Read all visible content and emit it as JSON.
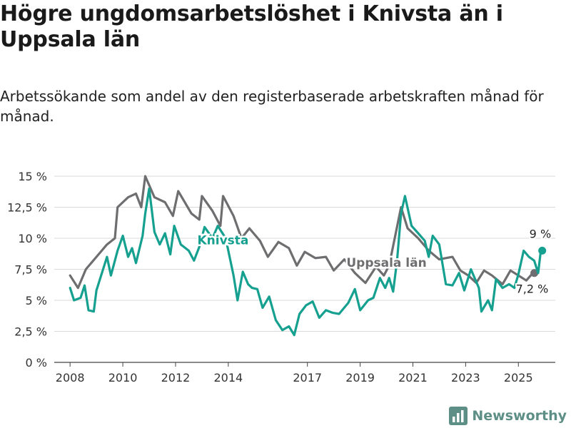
{
  "title": "Högre ungdomsarbetslöshet i Knivsta än i Uppsala län",
  "subtitle": "Arbetssökande som andel av den registerbaserade arbetskraften månad för månad.",
  "brand": {
    "name": "Newsworthy"
  },
  "chart_data": {
    "type": "line",
    "ylim": [
      0,
      15
    ],
    "xlim": [
      2007.4,
      2026.4
    ],
    "grid": true,
    "y_ticks": [
      0,
      2.5,
      5,
      7.5,
      10,
      12.5,
      15
    ],
    "y_tick_labels": [
      "0 %",
      "2,5 %",
      "5 %",
      "7,5 %",
      "10 %",
      "12,5 %",
      "15 %"
    ],
    "x_ticks": [
      2008,
      2010,
      2012,
      2014,
      2017,
      2019,
      2021,
      2023,
      2025
    ],
    "x_tick_labels": [
      "2008",
      "2010",
      "2012",
      "2014",
      "2017",
      "2019",
      "2021",
      "2023",
      "2025"
    ],
    "series": [
      {
        "name": "Uppsala län",
        "color": "#6e6e70",
        "end_label": "7,2 %",
        "points": [
          [
            2008.0,
            7.0
          ],
          [
            2008.3,
            6.0
          ],
          [
            2008.6,
            7.5
          ],
          [
            2009.0,
            8.5
          ],
          [
            2009.4,
            9.5
          ],
          [
            2009.7,
            10.0
          ],
          [
            2009.8,
            12.5
          ],
          [
            2010.2,
            13.3
          ],
          [
            2010.5,
            13.6
          ],
          [
            2010.7,
            12.5
          ],
          [
            2010.85,
            15.0
          ],
          [
            2011.2,
            13.3
          ],
          [
            2011.6,
            12.9
          ],
          [
            2011.9,
            11.8
          ],
          [
            2012.1,
            13.8
          ],
          [
            2012.6,
            12.0
          ],
          [
            2012.9,
            11.5
          ],
          [
            2013.0,
            13.4
          ],
          [
            2013.4,
            12.2
          ],
          [
            2013.7,
            11.0
          ],
          [
            2013.8,
            13.4
          ],
          [
            2014.2,
            11.8
          ],
          [
            2014.5,
            10.0
          ],
          [
            2014.8,
            10.8
          ],
          [
            2015.2,
            9.8
          ],
          [
            2015.5,
            8.5
          ],
          [
            2015.9,
            9.7
          ],
          [
            2016.3,
            9.2
          ],
          [
            2016.6,
            7.8
          ],
          [
            2016.9,
            8.9
          ],
          [
            2017.3,
            8.4
          ],
          [
            2017.7,
            8.5
          ],
          [
            2018.0,
            7.4
          ],
          [
            2018.4,
            8.3
          ],
          [
            2018.8,
            7.2
          ],
          [
            2019.2,
            6.4
          ],
          [
            2019.6,
            7.7
          ],
          [
            2019.9,
            7.0
          ],
          [
            2020.1,
            7.8
          ],
          [
            2020.55,
            12.5
          ],
          [
            2020.8,
            10.8
          ],
          [
            2021.2,
            10.0
          ],
          [
            2021.6,
            9.0
          ],
          [
            2022.0,
            8.3
          ],
          [
            2022.5,
            8.5
          ],
          [
            2022.8,
            7.4
          ],
          [
            2023.1,
            7.0
          ],
          [
            2023.4,
            6.4
          ],
          [
            2023.7,
            7.4
          ],
          [
            2024.0,
            7.0
          ],
          [
            2024.4,
            6.3
          ],
          [
            2024.7,
            7.4
          ],
          [
            2025.0,
            7.0
          ],
          [
            2025.3,
            6.6
          ],
          [
            2025.55,
            7.2
          ]
        ]
      },
      {
        "name": "Knivsta",
        "color": "#16a090",
        "end_label": "9 %",
        "points": [
          [
            2008.0,
            6.0
          ],
          [
            2008.15,
            5.0
          ],
          [
            2008.4,
            5.2
          ],
          [
            2008.55,
            6.2
          ],
          [
            2008.7,
            4.2
          ],
          [
            2008.9,
            4.1
          ],
          [
            2009.0,
            5.8
          ],
          [
            2009.4,
            8.5
          ],
          [
            2009.55,
            7.0
          ],
          [
            2009.8,
            9.0
          ],
          [
            2010.0,
            10.2
          ],
          [
            2010.2,
            8.5
          ],
          [
            2010.35,
            9.2
          ],
          [
            2010.5,
            8.0
          ],
          [
            2010.75,
            10.2
          ],
          [
            2010.85,
            12.0
          ],
          [
            2011.0,
            14.0
          ],
          [
            2011.2,
            10.5
          ],
          [
            2011.4,
            9.5
          ],
          [
            2011.6,
            10.4
          ],
          [
            2011.8,
            8.7
          ],
          [
            2011.95,
            11.0
          ],
          [
            2012.2,
            9.5
          ],
          [
            2012.5,
            9.0
          ],
          [
            2012.7,
            8.2
          ],
          [
            2012.9,
            9.3
          ],
          [
            2013.1,
            10.9
          ],
          [
            2013.4,
            10.0
          ],
          [
            2013.6,
            11.0
          ],
          [
            2013.9,
            10.0
          ],
          [
            2014.2,
            7.0
          ],
          [
            2014.35,
            5.0
          ],
          [
            2014.55,
            7.3
          ],
          [
            2014.75,
            6.3
          ],
          [
            2014.9,
            6.0
          ],
          [
            2015.1,
            5.9
          ],
          [
            2015.3,
            4.4
          ],
          [
            2015.55,
            5.3
          ],
          [
            2015.8,
            3.4
          ],
          [
            2016.05,
            2.6
          ],
          [
            2016.3,
            2.9
          ],
          [
            2016.5,
            2.2
          ],
          [
            2016.7,
            3.9
          ],
          [
            2016.95,
            4.6
          ],
          [
            2017.2,
            4.9
          ],
          [
            2017.45,
            3.6
          ],
          [
            2017.7,
            4.2
          ],
          [
            2017.95,
            4.0
          ],
          [
            2018.2,
            3.9
          ],
          [
            2018.55,
            4.8
          ],
          [
            2018.8,
            5.9
          ],
          [
            2019.0,
            4.2
          ],
          [
            2019.3,
            5.0
          ],
          [
            2019.5,
            5.2
          ],
          [
            2019.75,
            6.8
          ],
          [
            2019.95,
            6.0
          ],
          [
            2020.1,
            6.8
          ],
          [
            2020.25,
            5.7
          ],
          [
            2020.4,
            8.2
          ],
          [
            2020.55,
            12.0
          ],
          [
            2020.7,
            13.4
          ],
          [
            2020.95,
            11.0
          ],
          [
            2021.2,
            10.4
          ],
          [
            2021.45,
            9.8
          ],
          [
            2021.6,
            8.5
          ],
          [
            2021.75,
            10.2
          ],
          [
            2022.0,
            9.5
          ],
          [
            2022.25,
            6.3
          ],
          [
            2022.5,
            6.2
          ],
          [
            2022.75,
            7.2
          ],
          [
            2022.95,
            5.8
          ],
          [
            2023.2,
            7.5
          ],
          [
            2023.5,
            6.0
          ],
          [
            2023.6,
            4.1
          ],
          [
            2023.85,
            5.0
          ],
          [
            2024.0,
            4.2
          ],
          [
            2024.15,
            6.7
          ],
          [
            2024.4,
            6.0
          ],
          [
            2024.65,
            6.3
          ],
          [
            2024.85,
            6.0
          ],
          [
            2025.0,
            7.1
          ],
          [
            2025.2,
            9.0
          ],
          [
            2025.4,
            8.5
          ],
          [
            2025.6,
            8.2
          ],
          [
            2025.75,
            7.2
          ],
          [
            2025.85,
            9.0
          ]
        ]
      }
    ],
    "line_labels": [
      {
        "series": "Knivsta",
        "text": "Knivsta",
        "x": 2013.8,
        "y": 9.5
      },
      {
        "series": "Uppsala län",
        "text": "Uppsala län",
        "x": 2020.0,
        "y": 7.7
      }
    ]
  }
}
